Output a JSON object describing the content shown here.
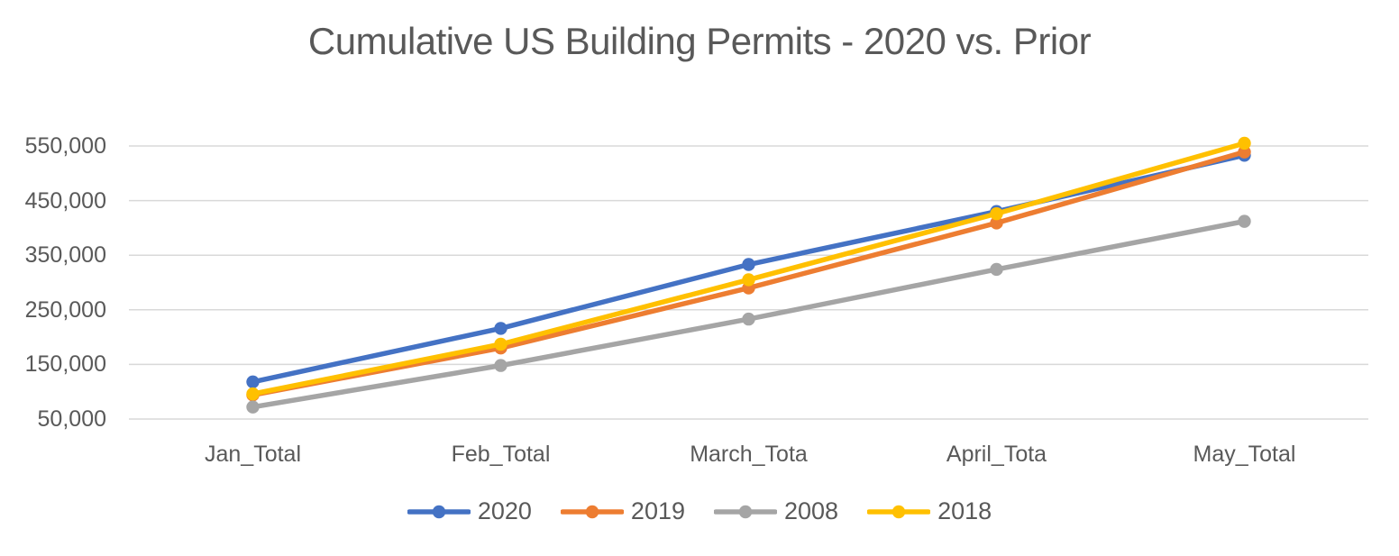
{
  "chart_data": {
    "type": "line",
    "title": "Cumulative US Building Permits - 2020 vs. Prior",
    "categories": [
      "Jan_Total",
      "Feb_Total",
      "March_Tota",
      "April_Tota",
      "May_Total"
    ],
    "series": [
      {
        "name": "2020",
        "color": "#4472C4",
        "values": [
          118000,
          216000,
          333000,
          430000,
          533000
        ]
      },
      {
        "name": "2019",
        "color": "#ED7D31",
        "values": [
          94000,
          180000,
          290000,
          409000,
          539000
        ]
      },
      {
        "name": "2008",
        "color": "#A5A5A5",
        "values": [
          72000,
          148000,
          233000,
          324000,
          412000
        ]
      },
      {
        "name": "2018",
        "color": "#FFC000",
        "values": [
          96000,
          187000,
          305000,
          426000,
          555000
        ]
      }
    ],
    "y_axis": {
      "min": 50000,
      "max": 550000,
      "tick_values": [
        550000,
        450000,
        350000,
        250000,
        150000,
        50000
      ],
      "tick_labels": [
        "550,000",
        "450,000",
        "350,000",
        "250,000",
        "150,000",
        "50,000"
      ]
    },
    "xlabel": "",
    "ylabel": "",
    "legend_position": "bottom",
    "legend_entries": [
      "2020",
      "2019",
      "2008",
      "2018"
    ],
    "grid": "horizontal",
    "marker": "circle",
    "colors": {
      "gridline": "#D9D9D9",
      "text": "#595959",
      "background": "#FFFFFF"
    }
  }
}
